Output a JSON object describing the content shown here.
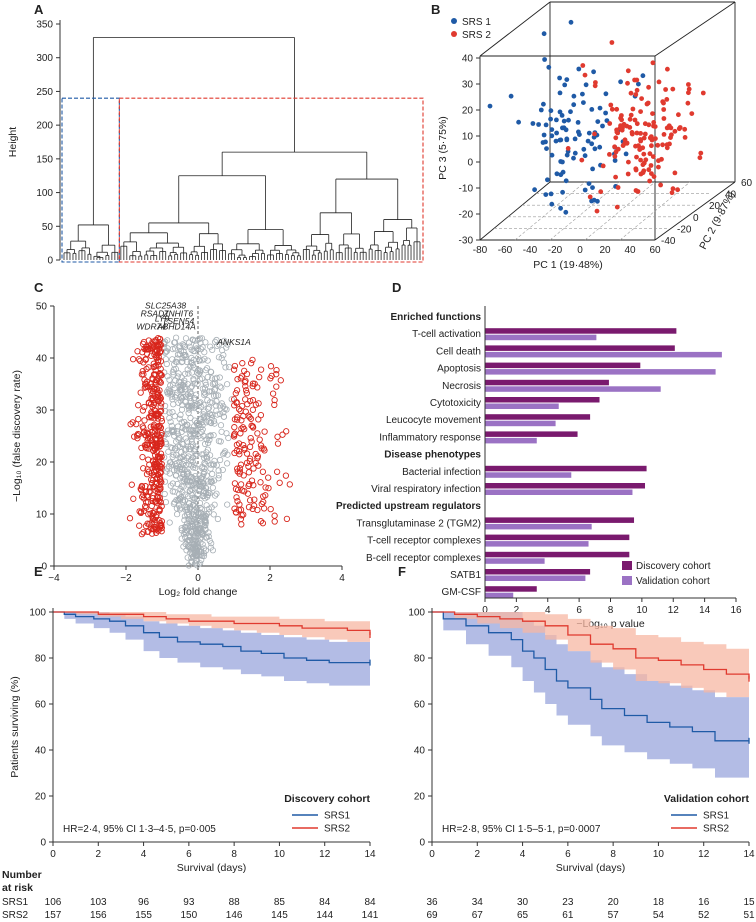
{
  "panels": {
    "A": {
      "letter": "A",
      "ylabel": "Height",
      "yticks": [
        0,
        50,
        100,
        150,
        200,
        250,
        300,
        350
      ],
      "ylim": [
        0,
        350
      ],
      "clusters": [
        {
          "name": "SRS 1",
          "color": "#1f5aa6"
        },
        {
          "name": "SRS 2",
          "color": "#e03a2f"
        }
      ],
      "root_height": 330,
      "main_split_heights": [
        240,
        160,
        125,
        120
      ]
    },
    "B": {
      "letter": "B",
      "legend": [
        {
          "name": "SRS 1",
          "color": "#1f5aa6"
        },
        {
          "name": "SRS 2",
          "color": "#e03a2f"
        }
      ],
      "xlabel": "PC 1 (19·48%)",
      "ylabel": "PC 2 (9·87%)",
      "zlabel": "PC 3 (5·75%)",
      "xticks": [
        -80,
        -60,
        -40,
        -20,
        0,
        20,
        40,
        60
      ],
      "yticks": [
        -40,
        -20,
        0,
        20,
        40,
        60
      ],
      "zticks": [
        -30,
        -20,
        -10,
        0,
        10,
        20,
        30,
        40
      ]
    },
    "C": {
      "letter": "C",
      "xlabel": "Log₂ fold change",
      "ylabel": "−Log₁₀ (false discovery rate)",
      "xticks": [
        -4,
        -2,
        0,
        2,
        4
      ],
      "yticks": [
        0,
        10,
        20,
        30,
        40,
        50
      ],
      "xlim": [
        -4,
        4
      ],
      "ylim": [
        0,
        50
      ],
      "labels": [
        {
          "text": "SLC25A38",
          "x": -0.9,
          "y": 49.5
        },
        {
          "text": "ZNHIT6",
          "x": -0.55,
          "y": 48
        },
        {
          "text": "RSAD1",
          "x": -1.2,
          "y": 48
        },
        {
          "text": "LY9",
          "x": -1.0,
          "y": 47
        },
        {
          "text": "TSEN54",
          "x": -0.55,
          "y": 46.5
        },
        {
          "text": "WDR74",
          "x": -1.3,
          "y": 45.5
        },
        {
          "text": "ABHD14A",
          "x": -0.6,
          "y": 45.5
        },
        {
          "text": "ANKS1A",
          "x": 1.0,
          "y": 42.5
        }
      ]
    },
    "D": {
      "letter": "D",
      "xlabel": "−Log₁₀ p value",
      "xticks": [
        0,
        2,
        4,
        6,
        8,
        10,
        12,
        14,
        16
      ],
      "xlim": [
        0,
        16
      ],
      "legend": [
        {
          "name": "Discovery cohort",
          "color": "#7a1a6e"
        },
        {
          "name": "Validation cohort",
          "color": "#9b72c4"
        }
      ],
      "groups": [
        {
          "heading": "Enriched functions",
          "items": [
            {
              "label": "T-cell activation",
              "discovery": 12.2,
              "validation": 7.1
            },
            {
              "label": "Cell death",
              "discovery": 12.1,
              "validation": 15.1
            },
            {
              "label": "Apoptosis",
              "discovery": 9.9,
              "validation": 14.7
            },
            {
              "label": "Necrosis",
              "discovery": 7.9,
              "validation": 11.2
            },
            {
              "label": "Cytotoxicity",
              "discovery": 7.3,
              "validation": 4.7
            },
            {
              "label": "Leucocyte movement",
              "discovery": 6.7,
              "validation": 4.5
            },
            {
              "label": "Inflammatory response",
              "discovery": 5.9,
              "validation": 3.3
            }
          ]
        },
        {
          "heading": "Disease phenotypes",
          "items": [
            {
              "label": "Bacterial infection",
              "discovery": 10.3,
              "validation": 5.5
            },
            {
              "label": "Viral respiratory infection",
              "discovery": 10.2,
              "validation": 9.4
            }
          ]
        },
        {
          "heading": "Predicted upstream regulators",
          "items": [
            {
              "label": "Transglutaminase 2 (TGM2)",
              "discovery": 9.5,
              "validation": 6.8
            },
            {
              "label": "T-cell receptor complexes",
              "discovery": 9.2,
              "validation": 6.6
            },
            {
              "label": "B-cell receptor complexes",
              "discovery": 9.2,
              "validation": 3.8
            },
            {
              "label": "SATB1",
              "discovery": 6.7,
              "validation": 6.4
            },
            {
              "label": "GM-CSF",
              "discovery": 3.3,
              "validation": 1.8
            }
          ]
        }
      ]
    },
    "E": {
      "letter": "E",
      "title": "Discovery cohort",
      "stat": "HR=2·4, 95% CI 1·3–4·5, p=0·005",
      "ylabel": "Patients surviving (%)",
      "xlabel": "Survival (days)",
      "xticks": [
        0,
        2,
        4,
        6,
        8,
        10,
        12,
        14
      ],
      "yticks": [
        0,
        20,
        40,
        60,
        80,
        100
      ],
      "series": [
        {
          "name": "SRS1",
          "color": "#1f5aa6",
          "band": "#9aa6dc",
          "x": [
            0,
            0.5,
            1,
            1.8,
            2.5,
            3.2,
            4,
            4.7,
            5.5,
            6.5,
            7.5,
            8.3,
            9.2,
            10.2,
            11.2,
            12.2,
            14
          ],
          "y": [
            100,
            99,
            98,
            97,
            96,
            94,
            91,
            89,
            87,
            86,
            85,
            83,
            82,
            80,
            79,
            78,
            78
          ],
          "lo": [
            100,
            97,
            95,
            93,
            91,
            88,
            83,
            80,
            78,
            76,
            75,
            73,
            72,
            70,
            69,
            68,
            68
          ],
          "hi": [
            100,
            100,
            100,
            100,
            99,
            98,
            96,
            95,
            94,
            93,
            92,
            91,
            90,
            89,
            88,
            87,
            87
          ]
        },
        {
          "name": "SRS2",
          "color": "#e03a2f",
          "band": "#f7b7a3",
          "x": [
            0,
            1,
            2,
            3,
            4,
            5,
            6,
            7,
            8,
            9,
            10,
            11,
            12,
            13,
            14
          ],
          "y": [
            100,
            100,
            99,
            99,
            98,
            97,
            96,
            96,
            95,
            95,
            94,
            93,
            93,
            92,
            90
          ],
          "lo": [
            100,
            99,
            98,
            97,
            96,
            95,
            94,
            93,
            92,
            91,
            90,
            89,
            88,
            87,
            86
          ],
          "hi": [
            100,
            100,
            100,
            100,
            100,
            99,
            99,
            98,
            98,
            98,
            97,
            97,
            96,
            96,
            95
          ]
        }
      ],
      "risk": {
        "times": [
          0,
          2,
          4,
          6,
          8,
          10,
          12,
          14
        ],
        "SRS1": [
          "106",
          "103",
          "96",
          "93",
          "88",
          "85",
          "84",
          "84"
        ],
        "SRS2": [
          "157",
          "156",
          "155",
          "150",
          "146",
          "145",
          "144",
          "141"
        ]
      }
    },
    "F": {
      "letter": "F",
      "title": "Validation cohort",
      "stat": "HR=2·8, 95% CI 1·5–5·1, p=0·0007",
      "xlabel": "Survival (days)",
      "xticks": [
        0,
        2,
        4,
        6,
        8,
        10,
        12,
        14
      ],
      "yticks": [
        0,
        20,
        40,
        60,
        80,
        100
      ],
      "series": [
        {
          "name": "SRS1",
          "color": "#1f5aa6",
          "band": "#9aa6dc",
          "x": [
            0,
            0.5,
            1.5,
            2.5,
            3.5,
            4,
            4.5,
            5,
            5.5,
            6,
            7,
            7.5,
            8.5,
            9.5,
            10.5,
            11.5,
            12.5,
            14
          ],
          "y": [
            100,
            97,
            94,
            91,
            88,
            83,
            80,
            75,
            70,
            67,
            62,
            58,
            55,
            52,
            50,
            48,
            44,
            44
          ],
          "lo": [
            100,
            92,
            86,
            81,
            76,
            70,
            65,
            60,
            55,
            51,
            46,
            42,
            39,
            36,
            34,
            32,
            28,
            28
          ],
          "hi": [
            100,
            100,
            100,
            100,
            100,
            96,
            94,
            90,
            86,
            83,
            79,
            76,
            73,
            70,
            68,
            66,
            63,
            63
          ]
        },
        {
          "name": "SRS2",
          "color": "#e03a2f",
          "band": "#f7b7a3",
          "x": [
            0,
            1,
            2,
            3,
            4,
            5,
            6,
            7,
            8,
            9,
            10,
            11,
            12,
            13,
            14
          ],
          "y": [
            100,
            99,
            98,
            97,
            96,
            94,
            90,
            86,
            84,
            80,
            79,
            77,
            75,
            73,
            71
          ],
          "lo": [
            100,
            97,
            95,
            93,
            91,
            88,
            83,
            78,
            75,
            70,
            69,
            67,
            65,
            63,
            61
          ],
          "hi": [
            100,
            100,
            100,
            100,
            100,
            99,
            97,
            94,
            93,
            90,
            89,
            87,
            86,
            84,
            82
          ]
        }
      ],
      "risk": {
        "times": [
          0,
          2,
          4,
          6,
          8,
          10,
          12,
          14
        ],
        "SRS1": [
          "36",
          "34",
          "30",
          "23",
          "20",
          "18",
          "16",
          "15"
        ],
        "SRS2": [
          "69",
          "67",
          "65",
          "61",
          "57",
          "54",
          "52",
          "51"
        ]
      }
    }
  },
  "risk_header": [
    "Number",
    "at risk"
  ],
  "risk_rows": [
    "SRS1",
    "SRS2"
  ],
  "chart_data": [
    {
      "type": "dendrogram",
      "title": "A",
      "ylabel": "Height",
      "ylim": [
        0,
        350
      ],
      "clusters": [
        "SRS 1",
        "SRS 2"
      ]
    },
    {
      "type": "scatter",
      "title": "B",
      "xlabel": "PC 1 (19·48%)",
      "ylabel": "PC 2 (9·87%)",
      "zlabel": "PC 3 (5·75%)",
      "series": [
        "SRS 1",
        "SRS 2"
      ]
    },
    {
      "type": "scatter",
      "title": "C",
      "xlabel": "Log₂ fold change",
      "ylabel": "−Log₁₀ (false discovery rate)",
      "xlim": [
        -4,
        4
      ],
      "ylim": [
        0,
        50
      ]
    },
    {
      "type": "bar",
      "title": "D",
      "xlabel": "−Log₁₀ p value",
      "series": [
        "Discovery cohort",
        "Validation cohort"
      ]
    },
    {
      "type": "line",
      "title": "E Discovery cohort",
      "xlabel": "Survival (days)",
      "ylabel": "Patients surviving (%)",
      "series": [
        "SRS1",
        "SRS2"
      ]
    },
    {
      "type": "line",
      "title": "F Validation cohort",
      "xlabel": "Survival (days)",
      "series": [
        "SRS1",
        "SRS2"
      ]
    }
  ]
}
